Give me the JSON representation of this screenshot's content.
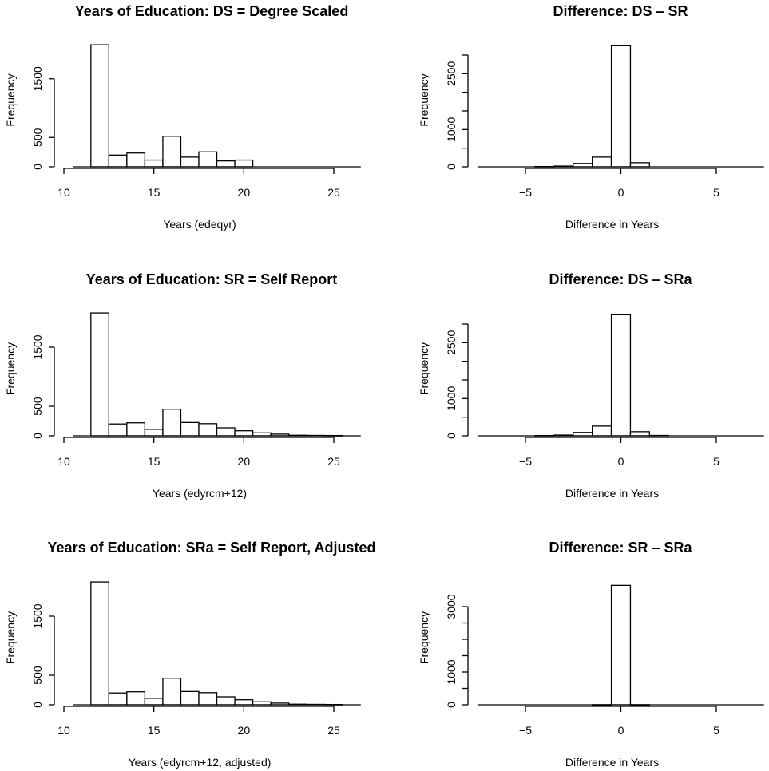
{
  "chart_data": [
    {
      "type": "bar",
      "title": "Years of Education: DS = Degree Scaled",
      "xlabel": "Years (edeqyr)",
      "ylabel": "Frequency",
      "xlim": [
        10,
        26
      ],
      "ylim": [
        0,
        2100
      ],
      "xticks": [
        10,
        15,
        20,
        25
      ],
      "yticks": [
        0,
        500,
        1500
      ],
      "baseline_range": [
        10.5,
        26.5
      ],
      "bins": [
        {
          "x0": 11.5,
          "x1": 12.5,
          "value": 2080
        },
        {
          "x0": 12.5,
          "x1": 13.5,
          "value": 200
        },
        {
          "x0": 13.5,
          "x1": 14.5,
          "value": 235
        },
        {
          "x0": 14.5,
          "x1": 15.5,
          "value": 115
        },
        {
          "x0": 15.5,
          "x1": 16.5,
          "value": 520
        },
        {
          "x0": 16.5,
          "x1": 17.5,
          "value": 165
        },
        {
          "x0": 17.5,
          "x1": 18.5,
          "value": 255
        },
        {
          "x0": 18.5,
          "x1": 19.5,
          "value": 100
        },
        {
          "x0": 19.5,
          "x1": 20.5,
          "value": 115
        }
      ]
    },
    {
      "type": "bar",
      "title": "Difference: DS – SR",
      "xlabel": "Difference in Years",
      "ylabel": "Frequency",
      "xlim": [
        -7,
        7
      ],
      "ylim": [
        0,
        3300
      ],
      "xticks": [
        -5,
        0,
        5
      ],
      "xtick_labels": [
        "−5",
        "0",
        "5"
      ],
      "yticks": [
        0,
        500,
        1000,
        1500,
        2000,
        2500,
        3000
      ],
      "ytick_labels": [
        "0",
        "",
        "1000",
        "",
        "",
        "2500",
        ""
      ],
      "baseline_range": [
        -7.5,
        7.5
      ],
      "bins": [
        {
          "x0": -4.5,
          "x1": -3.5,
          "value": 8
        },
        {
          "x0": -3.5,
          "x1": -2.5,
          "value": 20
        },
        {
          "x0": -2.5,
          "x1": -1.5,
          "value": 90
        },
        {
          "x0": -1.5,
          "x1": -0.5,
          "value": 260
        },
        {
          "x0": -0.5,
          "x1": 0.5,
          "value": 3250
        },
        {
          "x0": 0.5,
          "x1": 1.5,
          "value": 110
        }
      ]
    },
    {
      "type": "bar",
      "title": "Years of Education: SR = Self Report",
      "xlabel": "Years (edyrcm+12)",
      "ylabel": "Frequency",
      "xlim": [
        10,
        26
      ],
      "ylim": [
        0,
        2100
      ],
      "xticks": [
        10,
        15,
        20,
        25
      ],
      "yticks": [
        0,
        500,
        1500
      ],
      "baseline_range": [
        10.5,
        26.5
      ],
      "bins": [
        {
          "x0": 11.5,
          "x1": 12.5,
          "value": 2080
        },
        {
          "x0": 12.5,
          "x1": 13.5,
          "value": 200
        },
        {
          "x0": 13.5,
          "x1": 14.5,
          "value": 220
        },
        {
          "x0": 14.5,
          "x1": 15.5,
          "value": 110
        },
        {
          "x0": 15.5,
          "x1": 16.5,
          "value": 450
        },
        {
          "x0": 16.5,
          "x1": 17.5,
          "value": 225
        },
        {
          "x0": 17.5,
          "x1": 18.5,
          "value": 205
        },
        {
          "x0": 18.5,
          "x1": 19.5,
          "value": 135
        },
        {
          "x0": 19.5,
          "x1": 20.5,
          "value": 85
        },
        {
          "x0": 20.5,
          "x1": 21.5,
          "value": 50
        },
        {
          "x0": 21.5,
          "x1": 22.5,
          "value": 28
        },
        {
          "x0": 22.5,
          "x1": 23.5,
          "value": 10
        },
        {
          "x0": 23.5,
          "x1": 24.5,
          "value": 7
        },
        {
          "x0": 24.5,
          "x1": 25.5,
          "value": 5
        }
      ]
    },
    {
      "type": "bar",
      "title": "Difference: DS – SRa",
      "xlabel": "Difference in Years",
      "ylabel": "Frequency",
      "xlim": [
        -7,
        7
      ],
      "ylim": [
        0,
        3300
      ],
      "xticks": [
        -5,
        0,
        5
      ],
      "xtick_labels": [
        "−5",
        "0",
        "5"
      ],
      "yticks": [
        0,
        500,
        1000,
        1500,
        2000,
        2500,
        3000
      ],
      "ytick_labels": [
        "0",
        "",
        "1000",
        "",
        "",
        "2500",
        ""
      ],
      "baseline_range": [
        -7.5,
        7.5
      ],
      "bins": [
        {
          "x0": -4.5,
          "x1": -3.5,
          "value": 8
        },
        {
          "x0": -3.5,
          "x1": -2.5,
          "value": 20
        },
        {
          "x0": -2.5,
          "x1": -1.5,
          "value": 90
        },
        {
          "x0": -1.5,
          "x1": -0.5,
          "value": 260
        },
        {
          "x0": -0.5,
          "x1": 0.5,
          "value": 3250
        },
        {
          "x0": 0.5,
          "x1": 1.5,
          "value": 110
        },
        {
          "x0": 1.5,
          "x1": 2.5,
          "value": 10
        }
      ]
    },
    {
      "type": "bar",
      "title": "Years of Education: SRa = Self Report, Adjusted",
      "xlabel": "Years (edyrcm+12, adjusted)",
      "ylabel": "Frequency",
      "xlim": [
        10,
        26
      ],
      "ylim": [
        0,
        2100
      ],
      "xticks": [
        10,
        15,
        20,
        25
      ],
      "yticks": [
        0,
        500,
        1500
      ],
      "baseline_range": [
        10.5,
        26.5
      ],
      "bins": [
        {
          "x0": 11.5,
          "x1": 12.5,
          "value": 2080
        },
        {
          "x0": 12.5,
          "x1": 13.5,
          "value": 200
        },
        {
          "x0": 13.5,
          "x1": 14.5,
          "value": 220
        },
        {
          "x0": 14.5,
          "x1": 15.5,
          "value": 110
        },
        {
          "x0": 15.5,
          "x1": 16.5,
          "value": 450
        },
        {
          "x0": 16.5,
          "x1": 17.5,
          "value": 225
        },
        {
          "x0": 17.5,
          "x1": 18.5,
          "value": 205
        },
        {
          "x0": 18.5,
          "x1": 19.5,
          "value": 135
        },
        {
          "x0": 19.5,
          "x1": 20.5,
          "value": 85
        },
        {
          "x0": 20.5,
          "x1": 21.5,
          "value": 50
        },
        {
          "x0": 21.5,
          "x1": 22.5,
          "value": 28
        },
        {
          "x0": 22.5,
          "x1": 23.5,
          "value": 10
        },
        {
          "x0": 23.5,
          "x1": 24.5,
          "value": 7
        },
        {
          "x0": 24.5,
          "x1": 25.5,
          "value": 5
        }
      ]
    },
    {
      "type": "bar",
      "title": "Difference: SR – SRa",
      "xlabel": "Difference in Years",
      "ylabel": "Frequency",
      "xlim": [
        -7,
        7
      ],
      "ylim": [
        0,
        3700
      ],
      "xticks": [
        -5,
        0,
        5
      ],
      "xtick_labels": [
        "−5",
        "0",
        "5"
      ],
      "yticks": [
        0,
        500,
        1000,
        1500,
        2000,
        2500,
        3000
      ],
      "ytick_labels": [
        "0",
        "",
        "1000",
        "",
        "",
        "",
        "3000"
      ],
      "baseline_range": [
        -7.5,
        7.5
      ],
      "bins": [
        {
          "x0": -1.5,
          "x1": -0.5,
          "value": 3
        },
        {
          "x0": -0.5,
          "x1": 0.5,
          "value": 3650
        },
        {
          "x0": 0.5,
          "x1": 1.5,
          "value": 3
        }
      ]
    }
  ]
}
